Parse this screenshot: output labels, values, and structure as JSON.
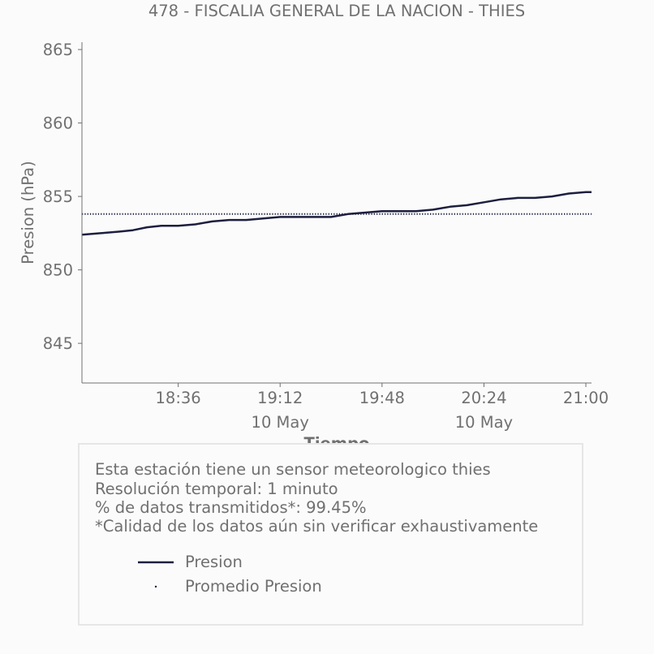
{
  "colors": {
    "series": "#1d1f3f",
    "text": "#707070",
    "axis": "#707070",
    "box_border": "#e6e6e6",
    "background": "#fbfbfb"
  },
  "chart_data": {
    "type": "line",
    "title": "478 - FISCALIA GENERAL DE LA NACION - THIES",
    "xlabel": "Tiempo",
    "ylabel": "Presion (hPa)",
    "ylim": [
      842.3,
      865.5
    ],
    "xlim": [
      "18:02",
      "21:02"
    ],
    "yticks": [
      845,
      850,
      855,
      860,
      865
    ],
    "xticks": [
      {
        "value": "18:36",
        "label": "18:36",
        "sublabel": ""
      },
      {
        "value": "19:12",
        "label": "19:12",
        "sublabel": "10 May"
      },
      {
        "value": "19:48",
        "label": "19:48",
        "sublabel": ""
      },
      {
        "value": "20:24",
        "label": "20:24",
        "sublabel": "10 May"
      },
      {
        "value": "21:00",
        "label": "21:00",
        "sublabel": ""
      }
    ],
    "grid": false,
    "series": [
      {
        "name": "Presion",
        "style": "line",
        "x": [
          "18:02",
          "18:09",
          "18:15",
          "18:20",
          "18:25",
          "18:30",
          "18:36",
          "18:42",
          "18:48",
          "18:54",
          "19:00",
          "19:06",
          "19:12",
          "19:18",
          "19:24",
          "19:30",
          "19:36",
          "19:42",
          "19:48",
          "19:54",
          "20:00",
          "20:06",
          "20:12",
          "20:18",
          "20:24",
          "20:30",
          "20:36",
          "20:42",
          "20:48",
          "20:54",
          "21:00",
          "21:02"
        ],
        "values": [
          852.4,
          852.5,
          852.6,
          852.7,
          852.9,
          853.0,
          853.0,
          853.1,
          853.3,
          853.4,
          853.4,
          853.5,
          853.6,
          853.6,
          853.6,
          853.6,
          853.8,
          853.9,
          854.0,
          854.0,
          854.0,
          854.1,
          854.3,
          854.4,
          854.6,
          854.8,
          854.9,
          854.9,
          855.0,
          855.2,
          855.3,
          855.3
        ]
      },
      {
        "name": "Promedio Presion",
        "style": "dotted",
        "constant": 853.8
      }
    ]
  },
  "info": {
    "line1": "Esta estación tiene un sensor meteorologico thies",
    "line2": "Resolución temporal: 1 minuto",
    "line3": "% de datos transmitidos*: 99.45%",
    "line4": "*Calidad de los datos aún sin verificar exhaustivamente",
    "legend_presion": "Presion",
    "legend_promedio": "Promedio Presion"
  }
}
